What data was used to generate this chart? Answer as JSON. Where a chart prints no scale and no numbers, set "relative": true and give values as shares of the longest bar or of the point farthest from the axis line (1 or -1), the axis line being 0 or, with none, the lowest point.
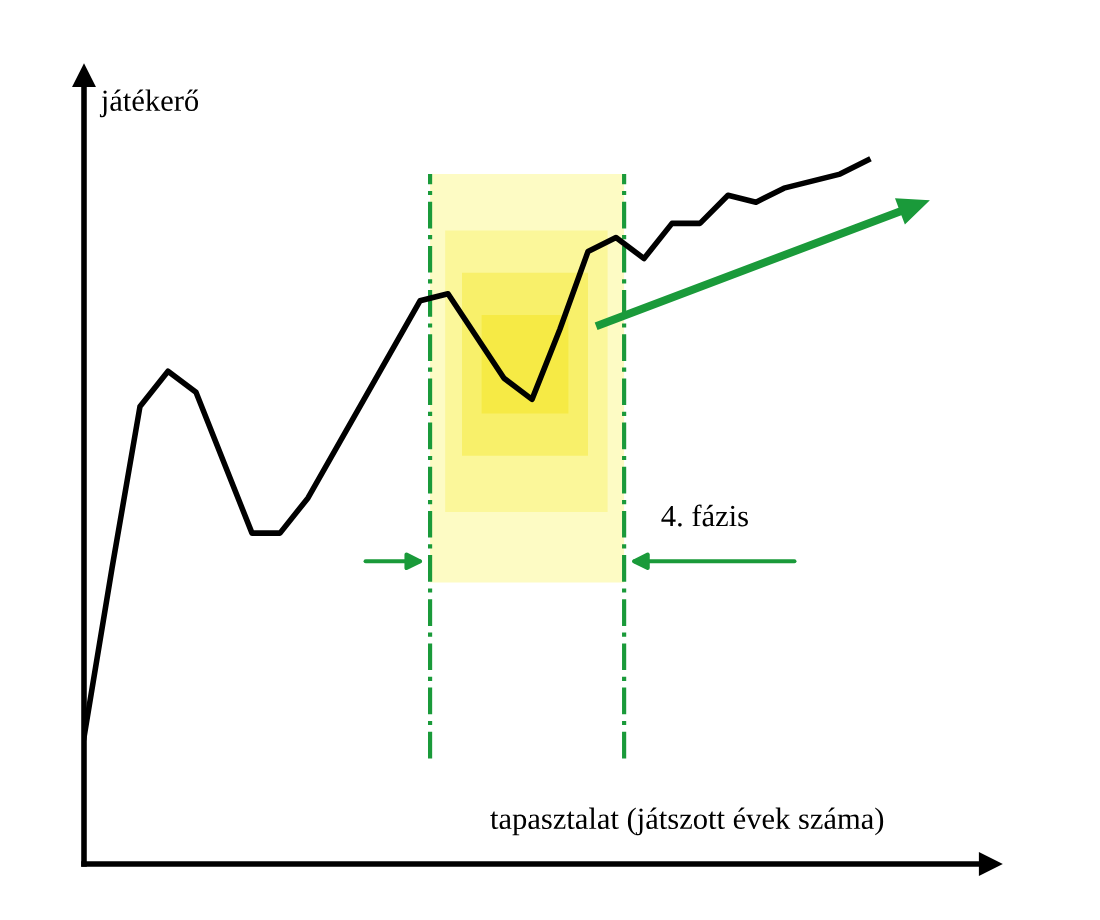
{
  "chart_data": {
    "type": "line",
    "relative": true,
    "xlabel": "tapasztalat (játszott évek száma)",
    "ylabel": "játékerő",
    "categories": [
      null,
      null,
      null,
      null,
      null,
      null,
      null,
      null,
      null,
      null,
      null,
      null,
      null,
      null,
      null,
      null,
      null,
      null,
      null,
      null,
      null,
      null,
      null,
      null,
      null,
      null,
      null,
      null,
      null
    ],
    "series": [
      {
        "color": "#000000",
        "values": [
          0.18,
          0.42,
          0.65,
          0.7,
          0.67,
          0.57,
          0.47,
          0.47,
          0.52,
          0.59,
          0.66,
          0.73,
          0.8,
          0.81,
          0.75,
          0.69,
          0.66,
          0.76,
          0.87,
          0.89,
          0.86,
          0.91,
          0.91,
          0.95,
          0.94,
          0.96,
          0.97,
          0.98,
          1.0
        ]
      }
    ],
    "annotations": [
      "4. fázis"
    ],
    "grid": false,
    "legend": false,
    "marker": "none",
    "line_style": "solid"
  }
}
